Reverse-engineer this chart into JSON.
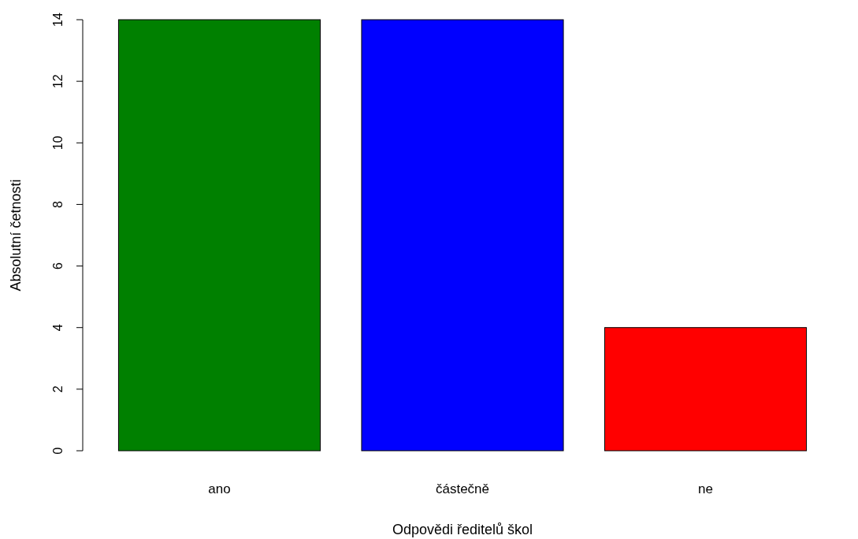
{
  "chart_data": {
    "type": "bar",
    "xlabel": "Odpovědi ředitelů škol",
    "ylabel": "Absolutní četnosti",
    "categories": [
      "ano",
      "částečně",
      "ne"
    ],
    "values": [
      14,
      14,
      4
    ],
    "colors": [
      "#008000",
      "#0000ff",
      "#ff0000"
    ],
    "ylim": [
      0,
      14
    ],
    "yticks": [
      0,
      2,
      4,
      6,
      8,
      10,
      12,
      14
    ]
  }
}
